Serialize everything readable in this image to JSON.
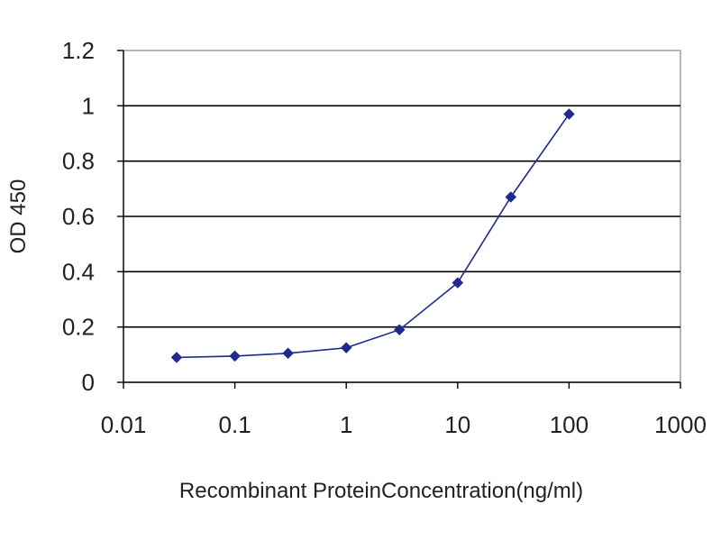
{
  "chart_data": {
    "type": "scatter",
    "x_scale": "log",
    "x": [
      0.03,
      0.1,
      0.3,
      1,
      3,
      10,
      30,
      100
    ],
    "series": [
      {
        "values": [
          0.09,
          0.095,
          0.105,
          0.125,
          0.19,
          0.36,
          0.67,
          0.97
        ],
        "color": "#1f2a8c"
      }
    ],
    "xlabel": "Recombinant ProteinConcentration(ng/ml)",
    "ylabel": "OD 450",
    "xlim": [
      0.01,
      1000
    ],
    "ylim": [
      0,
      1.2
    ],
    "x_ticks": [
      "0.01",
      "0.1",
      "1",
      "10",
      "100",
      "1000"
    ],
    "x_tick_values": [
      0.01,
      0.1,
      1,
      10,
      100,
      1000
    ],
    "y_ticks": [
      "0",
      "0.2",
      "0.4",
      "0.6",
      "0.8",
      "1",
      "1.2"
    ],
    "y_tick_values": [
      0,
      0.2,
      0.4,
      0.6,
      0.8,
      1,
      1.2
    ],
    "grid": "horizontal",
    "colors": {
      "gridline": "#000000",
      "frame": "#888888",
      "series": "#1f2a8c"
    }
  }
}
